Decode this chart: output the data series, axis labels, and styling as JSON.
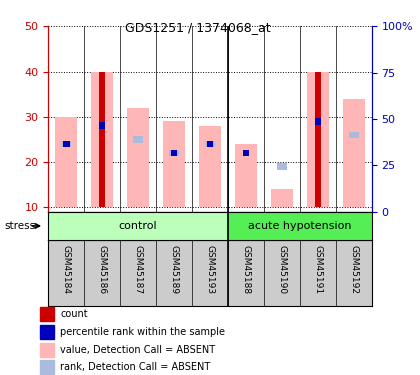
{
  "title": "GDS1251 / 1374068_at",
  "samples": [
    "GSM45184",
    "GSM45186",
    "GSM45187",
    "GSM45189",
    "GSM45193",
    "GSM45188",
    "GSM45190",
    "GSM45191",
    "GSM45192"
  ],
  "group_labels": [
    "control",
    "acute hypotension"
  ],
  "ylim_left": [
    9,
    50
  ],
  "ylim_right": [
    0,
    100
  ],
  "left_ticks": [
    10,
    20,
    30,
    40,
    50
  ],
  "right_ticks": [
    0,
    25,
    50,
    75,
    100
  ],
  "right_tick_labels": [
    "0",
    "25",
    "50",
    "75",
    "100%"
  ],
  "pink_bar_heights": [
    30,
    40,
    32,
    29,
    28,
    24,
    14,
    40,
    34
  ],
  "red_bar_heights": [
    0,
    40,
    0,
    0,
    0,
    0,
    0,
    40,
    0
  ],
  "blue_dark_y": [
    24,
    28,
    0,
    22,
    24,
    22,
    0,
    29,
    0
  ],
  "blue_light_y": [
    24,
    0,
    25,
    22,
    24,
    0,
    19,
    0,
    26
  ],
  "bar_bottom": 10,
  "color_red": "#CC0000",
  "color_pink": "#FFB6B6",
  "color_blue_dark": "#0000BB",
  "color_blue_light": "#AABBDD",
  "label_color_left": "#CC0000",
  "label_color_right": "#0000BB",
  "group_bg_control": "#BBFFBB",
  "group_bg_hypotension": "#55EE55",
  "sample_bg": "#CCCCCC",
  "legend_items": [
    {
      "color": "#CC0000",
      "label": "count"
    },
    {
      "color": "#0000BB",
      "label": "percentile rank within the sample"
    },
    {
      "color": "#FFB6B6",
      "label": "value, Detection Call = ABSENT"
    },
    {
      "color": "#AABBDD",
      "label": "rank, Detection Call = ABSENT"
    }
  ],
  "n_control": 5,
  "n_hypotension": 4
}
